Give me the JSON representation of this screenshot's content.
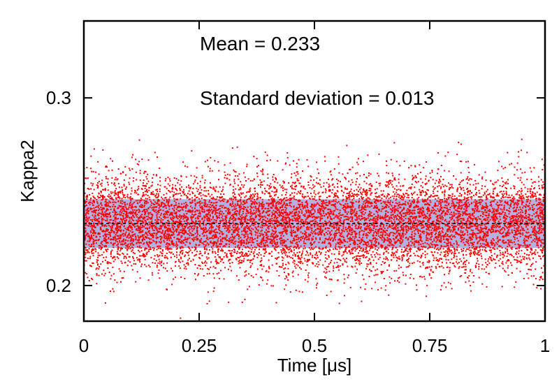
{
  "chart_data": {
    "type": "scatter",
    "title": "",
    "xlabel": "Time [μs]",
    "ylabel": "Kappa2",
    "xlim": [
      0,
      1
    ],
    "ylim": [
      0.181,
      0.341
    ],
    "x_ticks": [
      0,
      0.25,
      0.5,
      0.75,
      1
    ],
    "x_tick_labels": [
      "0",
      "0.25",
      "0.5",
      "0.75",
      "1"
    ],
    "y_ticks": [
      0.2,
      0.3
    ],
    "y_tick_labels": [
      "0.2",
      "0.3"
    ],
    "grid": false,
    "legend": "none",
    "annotations": [
      "Mean = 0.233",
      "Standard deviation = 0.013"
    ],
    "mean": 0.233,
    "standard_deviation": 0.013,
    "band": {
      "lower": 0.22,
      "upper": 0.246,
      "description": "mean ± 1 standard deviation"
    },
    "series": [
      {
        "values_summary": "about 10000 samples, roughly uniform over 0–1 μs, scattered around 0.233",
        "x_range": [
          0,
          1
        ],
        "y_range": [
          0.181,
          0.279
        ],
        "color": "#ff0000"
      }
    ],
    "colors": {
      "points": "#ff0000",
      "band": "#b4b0e0",
      "mean_line": "#000000",
      "frame": "#000000"
    }
  }
}
